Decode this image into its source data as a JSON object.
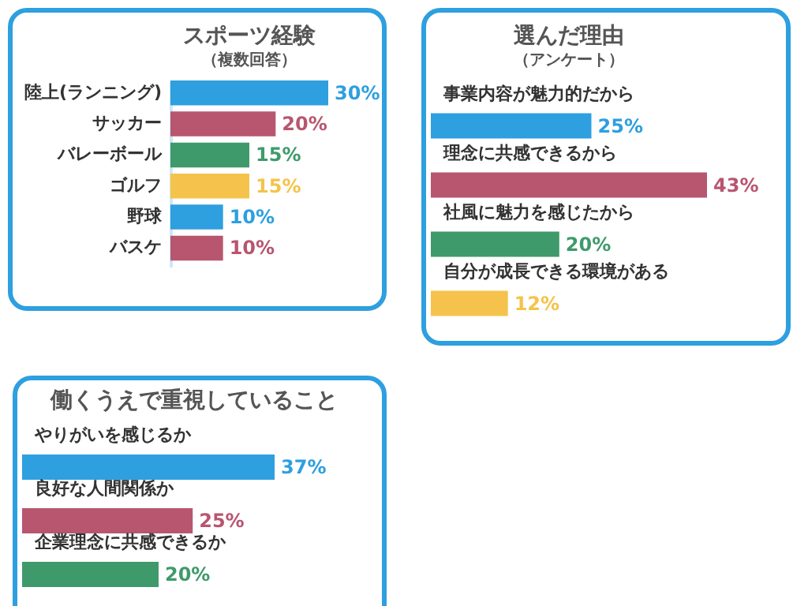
{
  "chart_data": [
    {
      "type": "bar",
      "orientation": "horizontal",
      "title": "スポーツ経験",
      "subtitle": "（複数回答）",
      "categories": [
        "陸上(ランニング)",
        "サッカー",
        "バレーボール",
        "ゴルフ",
        "野球",
        "バスケ"
      ],
      "values": [
        30,
        20,
        15,
        15,
        10,
        10
      ],
      "value_labels": [
        "30%",
        "20%",
        "15%",
        "15%",
        "10%",
        "10%"
      ],
      "colors": [
        "#2e9fdf",
        "#b8566f",
        "#3f9a6b",
        "#f5c34b",
        "#2e9fdf",
        "#b8566f"
      ]
    },
    {
      "type": "bar",
      "orientation": "horizontal",
      "title": "選んだ理由",
      "subtitle": "（アンケート）",
      "categories": [
        "事業内容が魅力的だから",
        "理念に共感できるから",
        "社風に魅力を感じたから",
        "自分が成長できる環境がある"
      ],
      "values": [
        25,
        43,
        20,
        12
      ],
      "value_labels": [
        "25%",
        "43%",
        "20%",
        "12%"
      ],
      "colors": [
        "#2e9fdf",
        "#b8566f",
        "#3f9a6b",
        "#f5c34b"
      ]
    },
    {
      "type": "bar",
      "orientation": "horizontal",
      "title": "働くうえで重視していること",
      "categories": [
        "やりがいを感じるか",
        "良好な人間関係か",
        "企業理念に共感できるか"
      ],
      "values": [
        37,
        25,
        20
      ],
      "value_labels": [
        "37%",
        "25%",
        "20%"
      ],
      "colors": [
        "#2e9fdf",
        "#b8566f",
        "#3f9a6b"
      ]
    }
  ]
}
